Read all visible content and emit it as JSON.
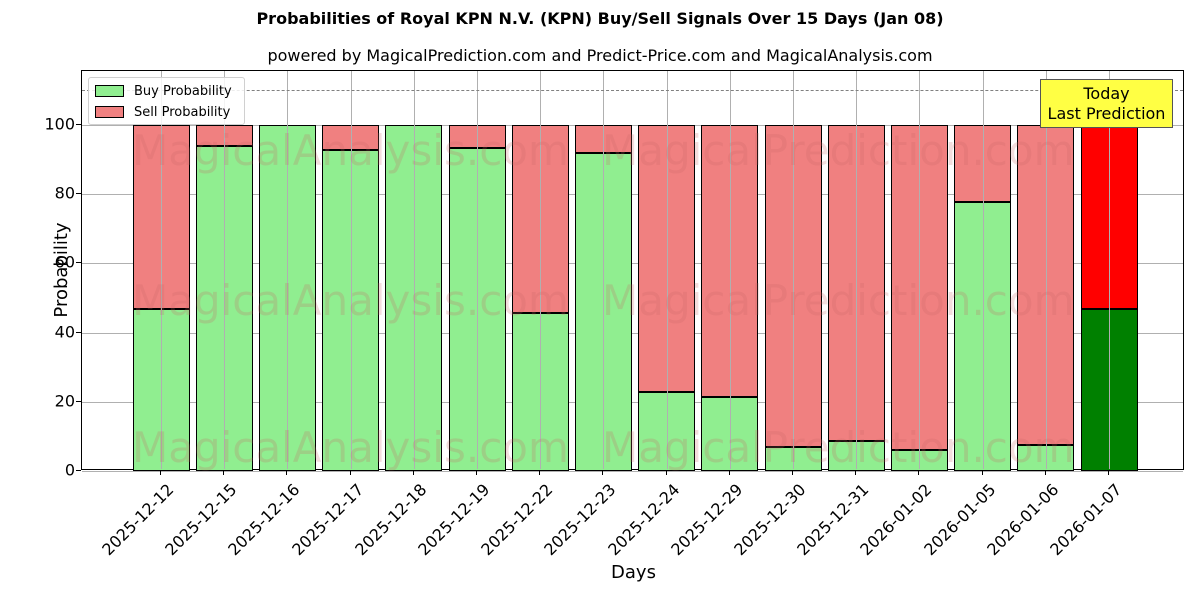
{
  "chart_data": {
    "type": "bar",
    "stacked": true,
    "title": "Probabilities of Royal KPN N.V. (KPN) Buy/Sell Signals Over 15 Days (Jan 08)",
    "subtitle": "powered by MagicalPrediction.com and Predict-Price.com and MagicalAnalysis.com",
    "xlabel": "Days",
    "ylabel": "Probability",
    "ylim": [
      0,
      115
    ],
    "yticks": [
      0,
      20,
      40,
      60,
      80,
      100
    ],
    "reference_line": 110,
    "grid": true,
    "legend_position": "upper left",
    "categories": [
      "2025-12-12",
      "2025-12-15",
      "2025-12-16",
      "2025-12-17",
      "2025-12-18",
      "2025-12-19",
      "2025-12-22",
      "2025-12-23",
      "2025-12-24",
      "2025-12-29",
      "2025-12-30",
      "2025-12-31",
      "2026-01-02",
      "2026-01-05",
      "2026-01-06",
      "2026-01-07"
    ],
    "series": [
      {
        "name": "Buy Probability",
        "color": "#90ee90",
        "values": [
          46.8,
          93.9,
          100,
          92.8,
          100,
          93.4,
          45.7,
          91.9,
          22.8,
          21.4,
          6.9,
          8.7,
          6.1,
          77.7,
          7.5,
          46.8
        ]
      },
      {
        "name": "Sell Probability",
        "color": "#f08080",
        "values": [
          53.2,
          6.1,
          0,
          7.2,
          0,
          6.6,
          54.3,
          8.1,
          77.2,
          78.6,
          93.1,
          91.3,
          93.9,
          22.3,
          92.5,
          53.2
        ]
      }
    ],
    "highlight": {
      "index": 15,
      "buy_color": "#008000",
      "sell_color": "#ff0000"
    },
    "annotation": {
      "line1": "Today",
      "line2": "Last Prediction",
      "background": "#ffff44"
    },
    "watermarks": [
      "MagicalAnalysis.com",
      "MagicalPrediction.com"
    ]
  }
}
